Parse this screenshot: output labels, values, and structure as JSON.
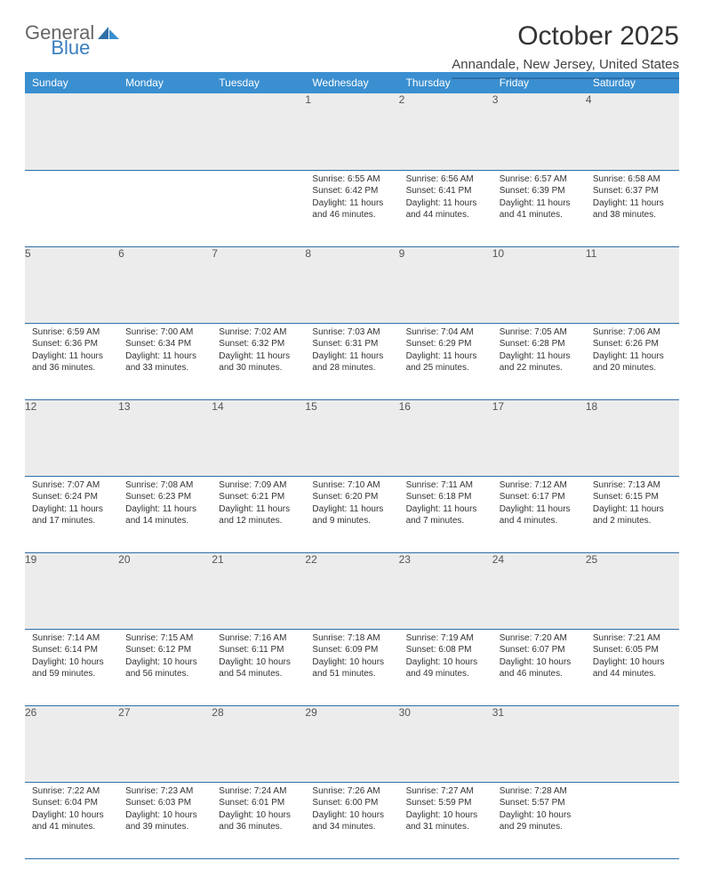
{
  "logo": {
    "textA": "General",
    "textB": "Blue"
  },
  "title": "October 2025",
  "location": "Annandale, New Jersey, United States",
  "colors": {
    "header_bg": "#3a8fd0",
    "header_text": "#ffffff",
    "rule": "#2f6fa8",
    "daynum_bg": "#ececec",
    "logo_blue": "#3a7ebf"
  },
  "day_headers": [
    "Sunday",
    "Monday",
    "Tuesday",
    "Wednesday",
    "Thursday",
    "Friday",
    "Saturday"
  ],
  "weeks": [
    [
      null,
      null,
      null,
      {
        "d": "1",
        "sr": "6:55 AM",
        "ss": "6:42 PM",
        "dl": "11 hours and 46 minutes."
      },
      {
        "d": "2",
        "sr": "6:56 AM",
        "ss": "6:41 PM",
        "dl": "11 hours and 44 minutes."
      },
      {
        "d": "3",
        "sr": "6:57 AM",
        "ss": "6:39 PM",
        "dl": "11 hours and 41 minutes."
      },
      {
        "d": "4",
        "sr": "6:58 AM",
        "ss": "6:37 PM",
        "dl": "11 hours and 38 minutes."
      }
    ],
    [
      {
        "d": "5",
        "sr": "6:59 AM",
        "ss": "6:36 PM",
        "dl": "11 hours and 36 minutes."
      },
      {
        "d": "6",
        "sr": "7:00 AM",
        "ss": "6:34 PM",
        "dl": "11 hours and 33 minutes."
      },
      {
        "d": "7",
        "sr": "7:02 AM",
        "ss": "6:32 PM",
        "dl": "11 hours and 30 minutes."
      },
      {
        "d": "8",
        "sr": "7:03 AM",
        "ss": "6:31 PM",
        "dl": "11 hours and 28 minutes."
      },
      {
        "d": "9",
        "sr": "7:04 AM",
        "ss": "6:29 PM",
        "dl": "11 hours and 25 minutes."
      },
      {
        "d": "10",
        "sr": "7:05 AM",
        "ss": "6:28 PM",
        "dl": "11 hours and 22 minutes."
      },
      {
        "d": "11",
        "sr": "7:06 AM",
        "ss": "6:26 PM",
        "dl": "11 hours and 20 minutes."
      }
    ],
    [
      {
        "d": "12",
        "sr": "7:07 AM",
        "ss": "6:24 PM",
        "dl": "11 hours and 17 minutes."
      },
      {
        "d": "13",
        "sr": "7:08 AM",
        "ss": "6:23 PM",
        "dl": "11 hours and 14 minutes."
      },
      {
        "d": "14",
        "sr": "7:09 AM",
        "ss": "6:21 PM",
        "dl": "11 hours and 12 minutes."
      },
      {
        "d": "15",
        "sr": "7:10 AM",
        "ss": "6:20 PM",
        "dl": "11 hours and 9 minutes."
      },
      {
        "d": "16",
        "sr": "7:11 AM",
        "ss": "6:18 PM",
        "dl": "11 hours and 7 minutes."
      },
      {
        "d": "17",
        "sr": "7:12 AM",
        "ss": "6:17 PM",
        "dl": "11 hours and 4 minutes."
      },
      {
        "d": "18",
        "sr": "7:13 AM",
        "ss": "6:15 PM",
        "dl": "11 hours and 2 minutes."
      }
    ],
    [
      {
        "d": "19",
        "sr": "7:14 AM",
        "ss": "6:14 PM",
        "dl": "10 hours and 59 minutes."
      },
      {
        "d": "20",
        "sr": "7:15 AM",
        "ss": "6:12 PM",
        "dl": "10 hours and 56 minutes."
      },
      {
        "d": "21",
        "sr": "7:16 AM",
        "ss": "6:11 PM",
        "dl": "10 hours and 54 minutes."
      },
      {
        "d": "22",
        "sr": "7:18 AM",
        "ss": "6:09 PM",
        "dl": "10 hours and 51 minutes."
      },
      {
        "d": "23",
        "sr": "7:19 AM",
        "ss": "6:08 PM",
        "dl": "10 hours and 49 minutes."
      },
      {
        "d": "24",
        "sr": "7:20 AM",
        "ss": "6:07 PM",
        "dl": "10 hours and 46 minutes."
      },
      {
        "d": "25",
        "sr": "7:21 AM",
        "ss": "6:05 PM",
        "dl": "10 hours and 44 minutes."
      }
    ],
    [
      {
        "d": "26",
        "sr": "7:22 AM",
        "ss": "6:04 PM",
        "dl": "10 hours and 41 minutes."
      },
      {
        "d": "27",
        "sr": "7:23 AM",
        "ss": "6:03 PM",
        "dl": "10 hours and 39 minutes."
      },
      {
        "d": "28",
        "sr": "7:24 AM",
        "ss": "6:01 PM",
        "dl": "10 hours and 36 minutes."
      },
      {
        "d": "29",
        "sr": "7:26 AM",
        "ss": "6:00 PM",
        "dl": "10 hours and 34 minutes."
      },
      {
        "d": "30",
        "sr": "7:27 AM",
        "ss": "5:59 PM",
        "dl": "10 hours and 31 minutes."
      },
      {
        "d": "31",
        "sr": "7:28 AM",
        "ss": "5:57 PM",
        "dl": "10 hours and 29 minutes."
      },
      null
    ]
  ],
  "labels": {
    "sunrise": "Sunrise:",
    "sunset": "Sunset:",
    "daylight": "Daylight:"
  }
}
